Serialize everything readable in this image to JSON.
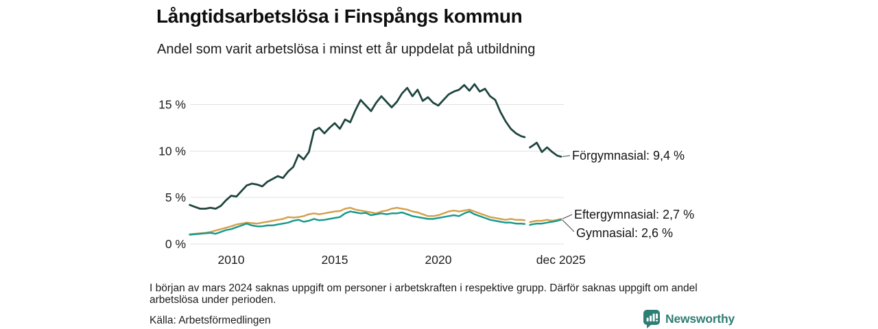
{
  "header": {
    "title": "Långtidsarbetslösa i Finspångs kommun",
    "subtitle": "Andel som varit arbetslösa i minst ett år uppdelat på utbildning"
  },
  "footnote": {
    "text": "I början av mars 2024 saknas uppgift om personer i arbetskraften i respektive grupp. Därför saknas uppgift om andel arbetslösa under perioden."
  },
  "source": {
    "text": "Källa: Arbetsförmedlingen"
  },
  "branding": {
    "name": "Newsworthy",
    "color": "#2e7e74",
    "icon": "newsworthy-speech-bubble-bar-chart-icon"
  },
  "chart_data": {
    "type": "line",
    "title": "Långtidsarbetslösa i Finspångs kommun",
    "xlabel": "",
    "ylabel": "",
    "grid": "horizontal",
    "legend_position": "end-of-line-labels",
    "ylim": [
      0,
      18
    ],
    "xlim": [
      2008,
      2026
    ],
    "gap_note": "data missing around March 2024",
    "colors": {
      "grid": "#e1e1e1",
      "tick_text": "#1c1c1c",
      "end_label_text": "#141414",
      "leader": "#444444"
    },
    "y_ticks": [
      {
        "label": "0 %",
        "value": 0
      },
      {
        "label": "5 %",
        "value": 5
      },
      {
        "label": "10 %",
        "value": 10
      },
      {
        "label": "15 %",
        "value": 15
      }
    ],
    "x_ticks": [
      {
        "label": "2010",
        "year": 2010
      },
      {
        "label": "2015",
        "year": 2015
      },
      {
        "label": "2020",
        "year": 2020
      },
      {
        "label": "dec 2025",
        "year": 2025.92
      }
    ],
    "x": [
      2008.0,
      2008.25,
      2008.5,
      2008.75,
      2009.0,
      2009.25,
      2009.5,
      2009.75,
      2010.0,
      2010.25,
      2010.5,
      2010.75,
      2011.0,
      2011.25,
      2011.5,
      2011.75,
      2012.0,
      2012.25,
      2012.5,
      2012.75,
      2013.0,
      2013.25,
      2013.5,
      2013.75,
      2014.0,
      2014.25,
      2014.5,
      2014.75,
      2015.0,
      2015.25,
      2015.5,
      2015.75,
      2016.0,
      2016.25,
      2016.5,
      2016.75,
      2017.0,
      2017.25,
      2017.5,
      2017.75,
      2018.0,
      2018.25,
      2018.5,
      2018.75,
      2019.0,
      2019.25,
      2019.5,
      2019.75,
      2020.0,
      2020.25,
      2020.5,
      2020.75,
      2021.0,
      2021.25,
      2021.5,
      2021.75,
      2022.0,
      2022.25,
      2022.5,
      2022.75,
      2023.0,
      2023.25,
      2023.5,
      2023.75,
      2024.0,
      2024.17,
      2024.25,
      2024.42,
      2024.5,
      2024.75,
      2025.0,
      2025.25,
      2025.5,
      2025.75,
      2025.92
    ],
    "series": [
      {
        "id": "forgymnasial",
        "name": "Förgymnasial",
        "end_label": "Förgymnasial: 9,4 %",
        "end_value": 9.4,
        "color": "#1e453e",
        "stroke_width": 2.8,
        "values": [
          4.2,
          4.0,
          3.8,
          3.8,
          3.9,
          3.8,
          4.1,
          4.7,
          5.2,
          5.1,
          5.7,
          6.3,
          6.5,
          6.4,
          6.2,
          6.7,
          7.0,
          7.3,
          7.1,
          7.8,
          8.3,
          9.6,
          9.1,
          9.9,
          12.2,
          12.5,
          11.9,
          12.5,
          13.0,
          12.4,
          13.4,
          13.1,
          14.4,
          15.5,
          14.9,
          14.3,
          15.2,
          15.9,
          15.3,
          14.7,
          15.3,
          16.2,
          16.8,
          15.9,
          16.6,
          15.4,
          15.8,
          15.2,
          14.9,
          15.5,
          16.1,
          16.4,
          16.6,
          17.1,
          16.5,
          17.2,
          16.4,
          16.7,
          15.9,
          15.5,
          14.2,
          13.2,
          12.4,
          11.9,
          11.6,
          11.5,
          null,
          10.4,
          10.5,
          10.9,
          9.9,
          10.4,
          9.9,
          9.5,
          9.4
        ]
      },
      {
        "id": "eftergymnasial",
        "name": "Eftergymnasial",
        "end_label": "Eftergymnasial: 2,7 %",
        "end_value": 2.7,
        "color": "#d2a14b",
        "stroke_width": 2.5,
        "values": [
          1.05,
          1.1,
          1.15,
          1.2,
          1.3,
          1.45,
          1.6,
          1.75,
          1.9,
          2.1,
          2.2,
          2.3,
          2.25,
          2.2,
          2.3,
          2.4,
          2.5,
          2.6,
          2.7,
          2.9,
          2.85,
          2.9,
          3.0,
          3.2,
          3.3,
          3.2,
          3.3,
          3.4,
          3.5,
          3.55,
          3.8,
          3.9,
          3.7,
          3.6,
          3.5,
          3.4,
          3.3,
          3.5,
          3.6,
          3.8,
          3.9,
          3.8,
          3.7,
          3.5,
          3.4,
          3.2,
          3.0,
          3.0,
          3.1,
          3.3,
          3.5,
          3.6,
          3.5,
          3.6,
          3.7,
          3.5,
          3.3,
          3.1,
          2.9,
          2.8,
          2.7,
          2.6,
          2.7,
          2.6,
          2.6,
          2.55,
          null,
          2.35,
          2.4,
          2.5,
          2.5,
          2.6,
          2.5,
          2.6,
          2.7
        ]
      },
      {
        "id": "gymnasial",
        "name": "Gymnasial",
        "end_label": "Gymnasial: 2,6 %",
        "end_value": 2.6,
        "color": "#18998c",
        "stroke_width": 2.5,
        "values": [
          1.0,
          1.05,
          1.1,
          1.15,
          1.2,
          1.1,
          1.3,
          1.5,
          1.6,
          1.8,
          2.0,
          2.2,
          2.0,
          1.9,
          1.9,
          2.0,
          2.0,
          2.1,
          2.2,
          2.3,
          2.5,
          2.6,
          2.4,
          2.5,
          2.7,
          2.55,
          2.6,
          2.7,
          2.8,
          2.9,
          3.3,
          3.5,
          3.4,
          3.3,
          3.35,
          3.1,
          3.2,
          3.3,
          3.2,
          3.3,
          3.3,
          3.4,
          3.2,
          3.0,
          2.9,
          2.8,
          2.7,
          2.7,
          2.8,
          2.9,
          3.0,
          3.1,
          3.0,
          3.3,
          3.5,
          3.2,
          3.0,
          2.8,
          2.6,
          2.5,
          2.4,
          2.3,
          2.3,
          2.2,
          2.2,
          2.15,
          null,
          2.05,
          2.1,
          2.2,
          2.2,
          2.3,
          2.4,
          2.5,
          2.6
        ]
      }
    ]
  }
}
